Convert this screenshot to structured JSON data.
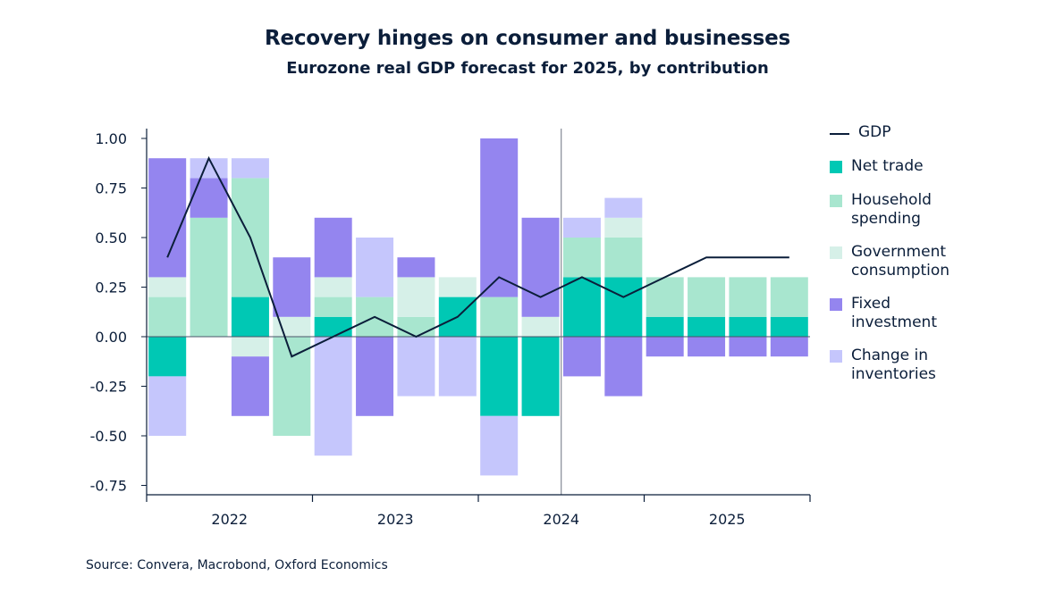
{
  "title": "Recovery hinges on consumer and businesses",
  "subtitle": "Eurozone real GDP forecast for 2025, by contribution",
  "source": "Source: Convera, Macrobond, Oxford Economics",
  "colors": {
    "gdp": "#0b1e3a",
    "net_trade": "#00c8b4",
    "household": "#a8e6cf",
    "government": "#d6f0e8",
    "fixed": "#9485ef",
    "inventories": "#c5c6fc"
  },
  "chart_data": {
    "type": "bar",
    "stacked": true,
    "categories": [
      "2022 Q1",
      "2022 Q2",
      "2022 Q3",
      "2022 Q4",
      "2023 Q1",
      "2023 Q2",
      "2023 Q3",
      "2023 Q4",
      "2024 Q1",
      "2024 Q2",
      "2024 Q3",
      "2024 Q4",
      "2025 Q1",
      "2025 Q2",
      "2025 Q3",
      "2025 Q4"
    ],
    "year_labels": [
      "2022",
      "2023",
      "2024",
      "2025"
    ],
    "y_ticks": [
      "1.00",
      "0.75",
      "0.50",
      "0.25",
      "0.00",
      "-0.25",
      "-0.50",
      "-0.75"
    ],
    "ylim": [
      -0.8,
      1.0
    ],
    "series": [
      {
        "key": "net_trade",
        "name": "Net trade",
        "values": [
          -0.2,
          0,
          0.2,
          0,
          0.1,
          0,
          0,
          0.2,
          -0.4,
          -0.4,
          0.3,
          0.3,
          0.1,
          0.1,
          0.1,
          0.1
        ]
      },
      {
        "key": "household",
        "name": "Household spending",
        "values": [
          0.2,
          0.6,
          0.6,
          -0.5,
          0.1,
          0.2,
          0.1,
          0,
          0.2,
          0,
          0.2,
          0.2,
          0.2,
          0.2,
          0.2,
          0.2
        ]
      },
      {
        "key": "government",
        "name": "Government consumption",
        "values": [
          0.1,
          0,
          -0.1,
          0.1,
          0.1,
          0,
          0.2,
          0.1,
          0,
          0.1,
          0,
          0.1,
          0,
          0,
          0,
          0
        ]
      },
      {
        "key": "fixed",
        "name": "Fixed investment",
        "values": [
          0.6,
          0.2,
          -0.3,
          0.3,
          0.3,
          -0.4,
          0.1,
          0,
          0.8,
          0.5,
          -0.2,
          -0.3,
          -0.1,
          -0.1,
          -0.1,
          -0.1
        ]
      },
      {
        "key": "inventories",
        "name": "Change in inventories",
        "values": [
          -0.3,
          0.1,
          0.1,
          0,
          -0.6,
          0.3,
          -0.3,
          -0.3,
          -0.3,
          0,
          0.1,
          0.1,
          0,
          0,
          0,
          0
        ]
      }
    ],
    "line": {
      "key": "gdp",
      "name": "GDP",
      "values": [
        0.4,
        0.9,
        0.5,
        -0.1,
        0,
        0.1,
        0,
        0.1,
        0.3,
        0.2,
        0.3,
        0.2,
        0.3,
        0.4,
        0.4,
        0.4
      ]
    },
    "divider_after_index": 9,
    "grid": false,
    "legend_position": "right"
  }
}
